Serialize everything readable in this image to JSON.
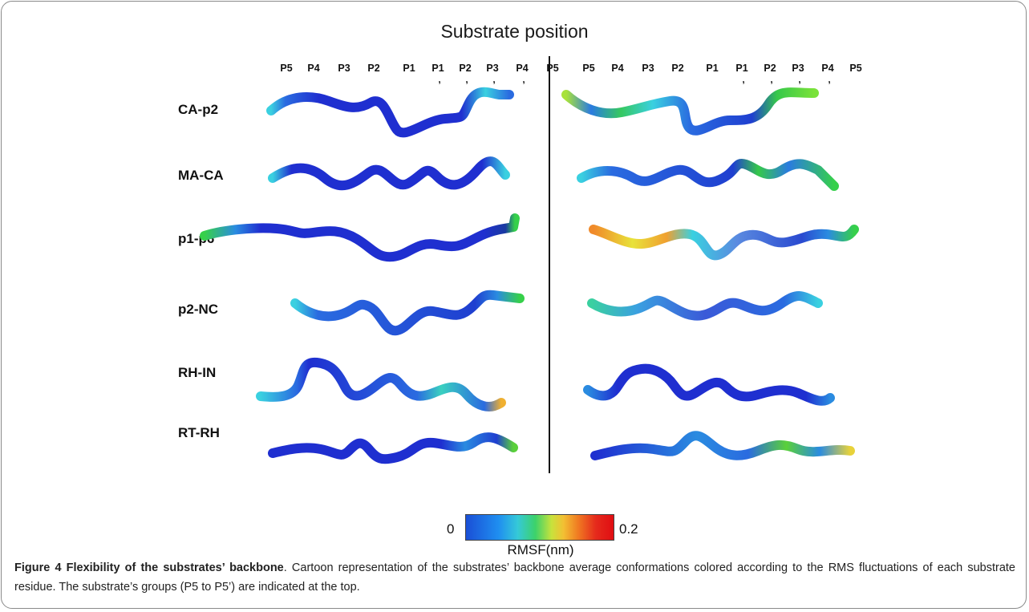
{
  "figure": {
    "title": "Substrate position",
    "positions_left": [
      "P5",
      "P4",
      "P3",
      "P2",
      "P1",
      "P1",
      "P2",
      "P3",
      "P4",
      "P5"
    ],
    "positions_right": [
      "P5",
      "P4",
      "P3",
      "P2",
      "P1",
      "P1",
      "P2",
      "P3",
      "P4",
      "P5"
    ],
    "prime_mark": ",",
    "rows": [
      {
        "label": "CA-p2"
      },
      {
        "label": "MA-CA"
      },
      {
        "label": "p1-p6"
      },
      {
        "label": "p2-NC"
      },
      {
        "label": "RH-IN"
      },
      {
        "label": "RT-RH"
      }
    ],
    "colorbar": {
      "min": "0",
      "max": "0.2",
      "label": "RMSF(nm)"
    }
  },
  "caption": {
    "heading": "Figure 4 Flexibility of the substrates’ backbone",
    "text": ". Cartoon representation of the substrates’ backbone average conformations colored according to the RMS fluctuations of each substrate residue. The substrate’s groups (P5 to P5’) are indicated at the top."
  },
  "colors": {
    "dark_blue": "#1f2fd0",
    "medium_blue": "#2a6be0",
    "cyan": "#3ad0e0",
    "green": "#36d04a",
    "yellow": "#e8e23a",
    "orange": "#f08a2a"
  }
}
